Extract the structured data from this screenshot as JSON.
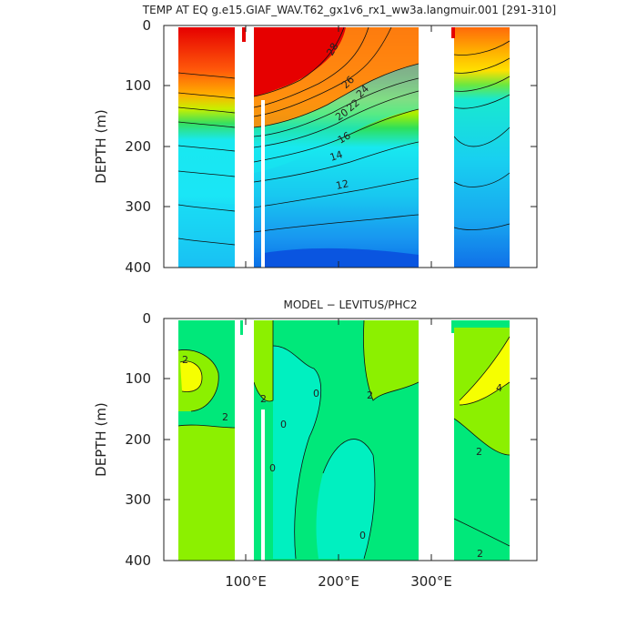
{
  "chart_data": [
    {
      "type": "heatmap",
      "title": "TEMP AT EQ g.e15.GIAF_WAV.T62_gx1v6_rx1_ww3a.langmuir.001 [291-310]",
      "ylabel": "DEPTH (m)",
      "xlabel": "",
      "xlim": [
        0,
        400
      ],
      "ylim": [
        400,
        0
      ],
      "y_ticks": [
        "0",
        "100",
        "200",
        "300",
        "400"
      ],
      "x_ticks": [],
      "contour_labels": [
        "28",
        "26",
        "24",
        "22",
        "20",
        "16",
        "14",
        "12"
      ],
      "masked_longitudes": [
        [
          98,
          118
        ],
        [
          128,
          132
        ],
        [
          280,
          315
        ]
      ],
      "colors": {
        "warm": "#e00000",
        "orange": "#ff8a10",
        "yellow": "#ffd200",
        "green": "#2ee05a",
        "cyan": "#18e8f0",
        "blue": "#0a55e0"
      }
    },
    {
      "type": "heatmap",
      "title": "MODEL − LEVITUS/PHC2",
      "ylabel": "DEPTH (m)",
      "xlabel": "",
      "xlim": [
        0,
        400
      ],
      "ylim": [
        400,
        0
      ],
      "y_ticks": [
        "0",
        "100",
        "200",
        "300",
        "400"
      ],
      "x_ticks": [
        "100°E",
        "200°E",
        "300°E"
      ],
      "contour_labels": [
        "2",
        "2",
        "2",
        "0",
        "0",
        "0",
        "0",
        "4",
        "2",
        "2",
        "2"
      ],
      "masked_longitudes": [
        [
          98,
          118
        ],
        [
          128,
          132
        ],
        [
          280,
          315
        ]
      ],
      "colors": {
        "zero": "#00e87a",
        "plus2": "#8cf000",
        "plus4": "#f6ff00",
        "minus2": "#00f0c0"
      }
    }
  ]
}
